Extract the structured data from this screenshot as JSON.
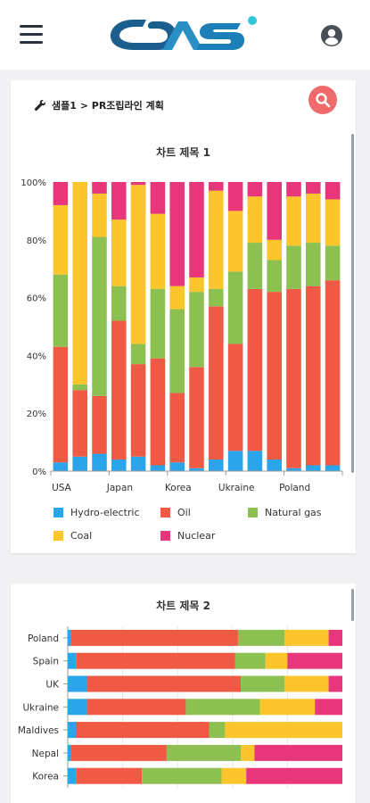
{
  "header": {
    "menu_icon": "hamburger-menu-icon",
    "logo_icon": "brand-logo",
    "user_icon": "user-account-icon"
  },
  "breadcrumb": {
    "icon": "wrench-icon",
    "text": "샘플1 > PR조립라인 계획"
  },
  "search": {
    "icon": "search-icon"
  },
  "colors": {
    "Hydro-electric": "#2aa4ea",
    "Oil": "#f05a45",
    "Natural gas": "#8cc152",
    "Coal": "#fcc52b",
    "Nuclear": "#e8367a",
    "search_button": "#ef6b6b"
  },
  "chart_data": [
    {
      "type": "bar",
      "stacked": "percent",
      "orientation": "vertical",
      "title": "차트 제목 1",
      "categories": [
        "USA",
        "",
        "",
        "Japan",
        "",
        "",
        "Korea",
        "",
        "",
        "Ukraine",
        "",
        "",
        "Poland",
        "",
        ""
      ],
      "x_tick_labels": [
        "USA",
        "Japan",
        "Korea",
        "Ukraine",
        "Poland"
      ],
      "y_tick_labels": [
        "0%",
        "20%",
        "40%",
        "60%",
        "80%",
        "100%"
      ],
      "ylim": [
        0,
        100
      ],
      "grid": false,
      "legend_position": "bottom",
      "series": [
        {
          "name": "Hydro-electric",
          "values": [
            3,
            5,
            6,
            4,
            5,
            2,
            3,
            1,
            4,
            7,
            7,
            4,
            1,
            2,
            2
          ]
        },
        {
          "name": "Oil",
          "values": [
            40,
            23,
            20,
            48,
            32,
            37,
            24,
            35,
            53,
            37,
            56,
            58,
            62,
            62,
            64
          ]
        },
        {
          "name": "Natural gas",
          "values": [
            25,
            2,
            55,
            12,
            7,
            24,
            29,
            26,
            6,
            25,
            16,
            11,
            15,
            15,
            12
          ]
        },
        {
          "name": "Coal",
          "values": [
            24,
            70,
            15,
            23,
            55,
            26,
            8,
            5,
            34,
            21,
            16,
            7,
            17,
            17,
            16
          ]
        },
        {
          "name": "Nuclear",
          "values": [
            8,
            0,
            4,
            13,
            1,
            11,
            36,
            33,
            3,
            10,
            5,
            20,
            5,
            4,
            6
          ]
        }
      ]
    },
    {
      "type": "bar",
      "stacked": "percent",
      "orientation": "horizontal",
      "title": "차트 제목 2",
      "categories": [
        "Poland",
        "Spain",
        "UK",
        "Ukraine",
        "Maldives",
        "Nepal",
        "Korea"
      ],
      "series": [
        {
          "name": "Hydro-electric",
          "values": [
            1,
            3,
            7,
            7,
            3,
            1,
            3
          ]
        },
        {
          "name": "Oil",
          "values": [
            61,
            58,
            56,
            36,
            50,
            35,
            24
          ]
        },
        {
          "name": "Natural gas",
          "values": [
            17,
            11,
            16,
            27,
            6,
            27,
            29
          ]
        },
        {
          "name": "Coal",
          "values": [
            16,
            8,
            16,
            20,
            44,
            5,
            9
          ]
        },
        {
          "name": "Nuclear",
          "values": [
            5,
            20,
            5,
            10,
            0,
            32,
            35
          ]
        }
      ]
    }
  ]
}
